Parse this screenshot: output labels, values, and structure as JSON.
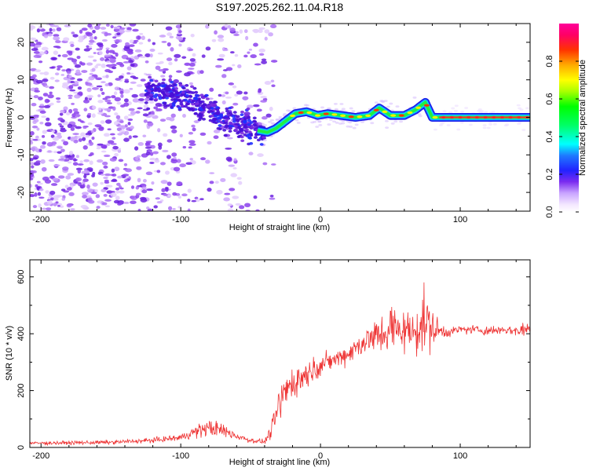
{
  "title": "S197.2025.262.11.04.R18",
  "chart_data": [
    {
      "type": "heatmap",
      "xlabel": "Height of straight line (km)",
      "ylabel": "Frequency (Hz)",
      "xlim": [
        -208,
        150
      ],
      "ylim": [
        -25,
        25
      ],
      "xticks": [
        -200,
        -100,
        0,
        100
      ],
      "xtick_labels": [
        "-200",
        "-100",
        "0",
        "100"
      ],
      "yticks": [
        -20,
        -10,
        0,
        10,
        20
      ],
      "ytick_labels": [
        "-20",
        "-10",
        "0",
        "10",
        "20"
      ],
      "colorbar": {
        "label": "Normalized spectral amplitude",
        "range": [
          0,
          1
        ],
        "ticks": [
          0,
          0.2,
          0.4,
          0.6,
          0.8
        ],
        "tick_labels": [
          "0.0",
          "0.2",
          "0.4",
          "0.6",
          "0.8"
        ]
      },
      "ridge": {
        "x": [
          -120,
          -105,
          -95,
          -85,
          -75,
          -65,
          -55,
          -45,
          -38,
          -32,
          -25,
          -18,
          -10,
          -2,
          5,
          15,
          25,
          35,
          42,
          50,
          60,
          68,
          75,
          80,
          90,
          110,
          130,
          150
        ],
        "y": [
          7,
          6,
          5,
          3,
          1,
          -1,
          -2,
          -3.5,
          -4,
          -3,
          -1,
          1,
          1.5,
          0.5,
          1,
          0.5,
          0,
          0.5,
          2.5,
          0.5,
          0.5,
          2,
          4,
          0,
          0,
          0,
          0,
          0
        ]
      }
    },
    {
      "type": "line",
      "xlabel": "Height of straight line (km)",
      "ylabel": "SNR (10 * v/v)",
      "xlim": [
        -208,
        150
      ],
      "ylim": [
        0,
        660
      ],
      "xticks": [
        -200,
        -100,
        0,
        100
      ],
      "xtick_labels": [
        "-200",
        "-100",
        "0",
        "100"
      ],
      "yticks": [
        0,
        200,
        400,
        600
      ],
      "ytick_labels": [
        "0",
        "200",
        "400",
        "600"
      ],
      "series": [
        {
          "name": "SNR",
          "color": "#ee3333",
          "envelope": {
            "x": [
              -208,
              -150,
              -120,
              -100,
              -90,
              -80,
              -70,
              -60,
              -50,
              -40,
              -35,
              -30,
              -25,
              -20,
              -15,
              -10,
              0,
              10,
              20,
              30,
              40,
              45,
              50,
              55,
              60,
              65,
              70,
              75,
              80,
              85,
              90,
              100,
              110,
              120,
              130,
              140,
              150
            ],
            "center": [
              15,
              18,
              25,
              35,
              55,
              70,
              60,
              40,
              25,
              20,
              60,
              140,
              200,
              230,
              240,
              260,
              290,
              310,
              330,
              370,
              390,
              400,
              420,
              410,
              420,
              400,
              430,
              440,
              420,
              410,
              405,
              415,
              415,
              410,
              415,
              410,
              420
            ],
            "spread": [
              10,
              12,
              15,
              20,
              35,
              55,
              40,
              25,
              15,
              12,
              50,
              110,
              120,
              110,
              90,
              80,
              60,
              55,
              60,
              80,
              110,
              130,
              160,
              140,
              130,
              120,
              170,
              200,
              120,
              60,
              30,
              25,
              25,
              30,
              25,
              35,
              50
            ]
          }
        }
      ]
    }
  ],
  "colors": {
    "line": "#ee3333",
    "scatter": "#7a2be0",
    "axis": "#000000"
  }
}
